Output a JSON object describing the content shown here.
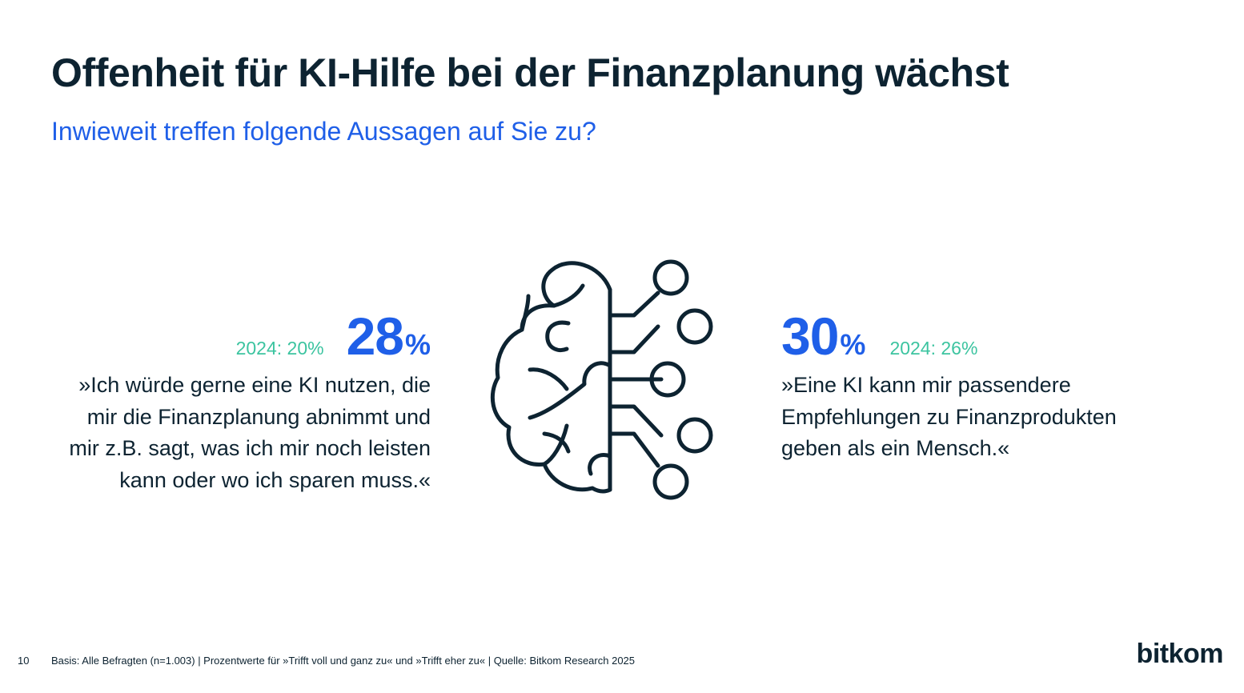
{
  "page": {
    "title": "Offenheit für KI-Hilfe bei der Finanzplanung wächst",
    "subtitle": "Inwieweit treffen folgende Aussagen auf Sie zu?"
  },
  "chart_data": {
    "type": "table",
    "title": "Offenheit für KI-Hilfe bei der Finanzplanung wächst",
    "subtitle": "Inwieweit treffen folgende Aussagen auf Sie zu?",
    "unit": "%",
    "items": [
      {
        "statement": "»Ich würde gerne eine KI nutzen, die mir die Finanzplanung abnimmt und mir z.B. sagt, was ich mir noch leisten kann oder wo ich sparen muss.«",
        "lines": [
          "»Ich würde gerne eine KI nutzen, die",
          "mir die Finanzplanung abnimmt und",
          "mir z.B. sagt, was ich mir noch leisten",
          "kann oder wo ich sparen muss.«"
        ],
        "value": 28,
        "value_label": "28",
        "previous_label": "2024: 20%",
        "previous_value": 20
      },
      {
        "statement": "»Eine KI kann mir passendere Empfehlungen zu Finanzprodukten geben als ein Mensch.«",
        "lines": [
          "»Eine KI kann mir passendere",
          "Empfehlungen zu Finanzprodukten",
          "geben als ein Mensch.«"
        ],
        "value": 30,
        "value_label": "30",
        "previous_label": "2024: 26%",
        "previous_value": 26
      }
    ],
    "percent_sign": "%"
  },
  "footer": {
    "page_number": "10",
    "source": "Basis: Alle Befragten (n=1.003) | Prozentwerte für »Trifft voll und ganz zu« und »Trifft eher zu« | Quelle: Bitkom Research 2025",
    "logo": "bitkom"
  },
  "icons": {
    "center": "brain-circuit-icon"
  },
  "colors": {
    "title": "#0d2331",
    "accent": "#1f5fe8",
    "previous": "#3cc4a0",
    "text": "#0d2331"
  }
}
